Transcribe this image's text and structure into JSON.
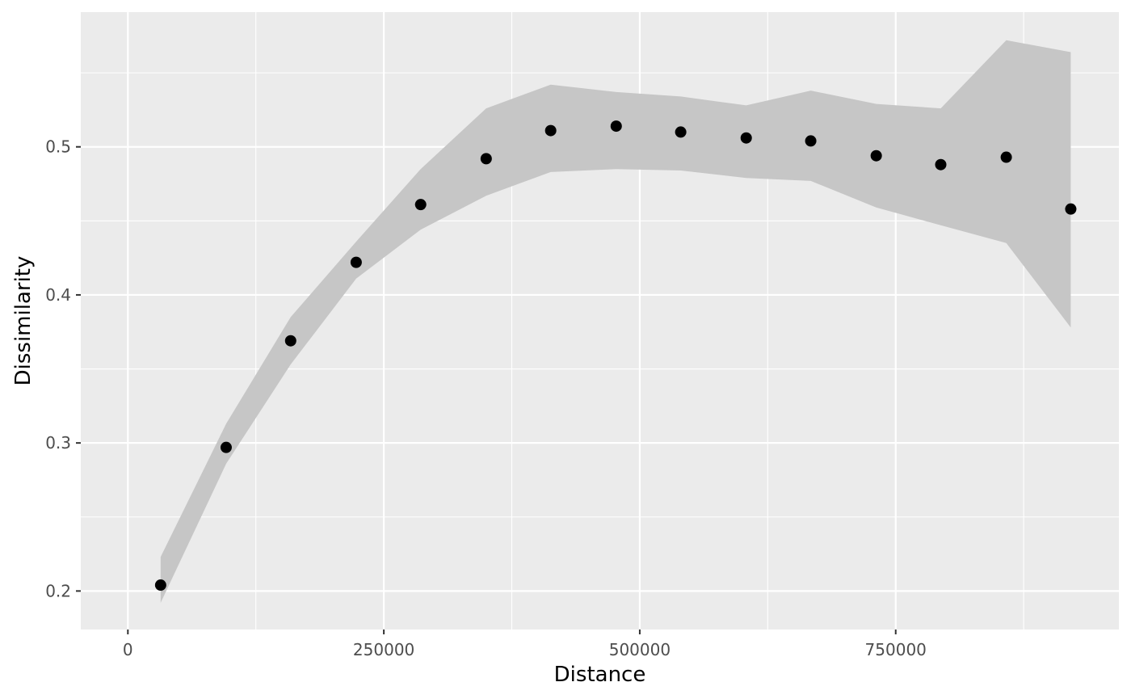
{
  "chart_data": {
    "type": "scatter",
    "title": "",
    "xlabel": "Distance",
    "ylabel": "Dissimilarity",
    "xlim": [
      -46000,
      968000
    ],
    "ylim": [
      0.174,
      0.591
    ],
    "x_ticks": [
      0,
      250000,
      500000,
      750000
    ],
    "x_tick_labels": [
      "0",
      "250000",
      "500000",
      "750000"
    ],
    "y_ticks": [
      0.2,
      0.3,
      0.4,
      0.5
    ],
    "y_tick_labels": [
      "0.2",
      "0.3",
      "0.4",
      "0.5"
    ],
    "grid": true,
    "legend": "none",
    "colors": {
      "panel": "#ebebeb",
      "grid": "#ffffff",
      "ribbon": "#c6c6c6",
      "point": "#000000"
    },
    "series": [
      {
        "x": [
          32000,
          96000,
          159000,
          223000,
          286000,
          350000,
          413000,
          477000,
          540000,
          604000,
          667000,
          731000,
          794000,
          858000,
          921000
        ],
        "y": [
          0.204,
          0.297,
          0.369,
          0.422,
          0.461,
          0.492,
          0.511,
          0.514,
          0.51,
          0.506,
          0.504,
          0.494,
          0.488,
          0.493,
          0.458
        ],
        "ymin": [
          0.192,
          0.286,
          0.353,
          0.411,
          0.444,
          0.467,
          0.483,
          0.485,
          0.484,
          0.479,
          0.477,
          0.459,
          0.447,
          0.435,
          0.378
        ],
        "ymax": [
          0.223,
          0.313,
          0.385,
          0.436,
          0.485,
          0.526,
          0.542,
          0.537,
          0.534,
          0.528,
          0.538,
          0.529,
          0.526,
          0.572,
          0.564
        ]
      }
    ]
  }
}
